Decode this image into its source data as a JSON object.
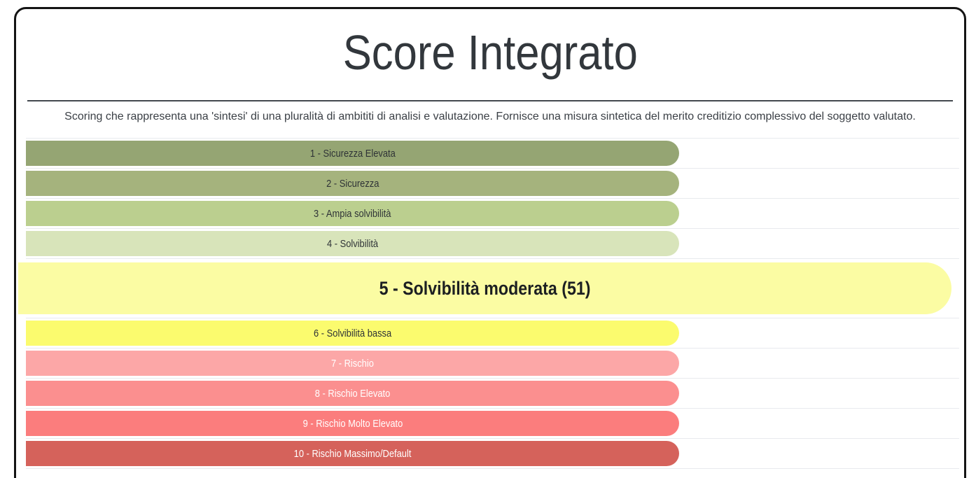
{
  "header": {
    "title": "Score Integrato",
    "subtitle": "Scoring che rappresenta una 'sintesi' di una pluralità di ambititi di analisi e valutazione. Fornisce una misura sintetica del merito creditizio complessivo del soggetto valutato."
  },
  "chart_data": {
    "type": "bar",
    "orientation": "horizontal",
    "title": "Score Integrato",
    "subtitle": "Scoring che rappresenta una 'sintesi' di una pluralità di ambititi di analisi e valutazione. Fornisce una misura sintetica del merito creditizio complessivo del soggetto valutato.",
    "selected_rank": 5,
    "selected_value": 51,
    "selected_label": "5 - Solvibilità moderata (51)",
    "gridlines": true,
    "bar_length_pct_normal": 70,
    "bar_length_pct_selected": 100,
    "categories": [
      "1 - Sicurezza Elevata",
      "2 - Sicurezza",
      "3 - Ampia solvibilità",
      "4 - Solvibilità",
      "5 - Solvibilità moderata (51)",
      "6 - Solvibilità bassa",
      "7 - Rischio",
      "8 - Rischio Elevato",
      "9 - Rischio Molto Elevato",
      "10 - Rischio Massimo/Default"
    ],
    "bars": [
      {
        "rank": 1,
        "label": "1 - Sicurezza Elevata",
        "color": "#95a573",
        "text_color": "#2e3236",
        "selected": false
      },
      {
        "rank": 2,
        "label": "2 - Sicurezza",
        "color": "#a5b37d",
        "text_color": "#2e3236",
        "selected": false
      },
      {
        "rank": 3,
        "label": "3 - Ampia solvibilità",
        "color": "#bbcf8f",
        "text_color": "#2e3236",
        "selected": false
      },
      {
        "rank": 4,
        "label": "4 - Solvibilità",
        "color": "#d8e4ba",
        "text_color": "#2e3236",
        "selected": false
      },
      {
        "rank": 5,
        "label": "5 - Solvibilità moderata (51)",
        "color": "#fbfca3",
        "text_color": "#1c1f22",
        "selected": true
      },
      {
        "rank": 6,
        "label": "6 - Solvibilità bassa",
        "color": "#fbfb6e",
        "text_color": "#2e3236",
        "selected": false
      },
      {
        "rank": 7,
        "label": "7 - Rischio",
        "color": "#fca7a7",
        "text_color": "#ffffff",
        "selected": false
      },
      {
        "rank": 8,
        "label": "8 - Rischio Elevato",
        "color": "#fb8f8f",
        "text_color": "#ffffff",
        "selected": false
      },
      {
        "rank": 9,
        "label": "9 - Rischio Molto Elevato",
        "color": "#fb7d7d",
        "text_color": "#ffffff",
        "selected": false
      },
      {
        "rank": 10,
        "label": "10 - Rischio Massimo/Default",
        "color": "#d5625b",
        "text_color": "#ffffff",
        "selected": false
      }
    ],
    "colors": {
      "grid": "#e8eaee",
      "card_border": "#141414",
      "title_text": "#32373c"
    }
  }
}
